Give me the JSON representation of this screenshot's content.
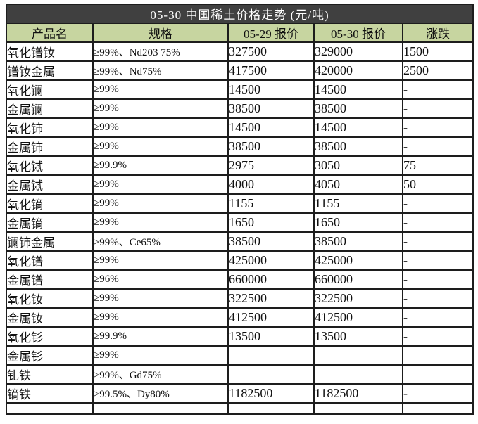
{
  "title": "05-30 中国稀土价格走势 (元/吨)",
  "columns": [
    "产品名",
    "规格",
    "05-29 报价",
    "05-30 报价",
    "涨跌"
  ],
  "rows": [
    {
      "product": "氧化镨钕",
      "spec": "≥99%、Nd203 75%",
      "price_0529": "327500",
      "price_0530": "329000",
      "change": "1500"
    },
    {
      "product": "镨钕金属",
      "spec": "≥99%、Nd75%",
      "price_0529": "417500",
      "price_0530": "420000",
      "change": "2500"
    },
    {
      "product": "氧化镧",
      "spec": "≥99%",
      "price_0529": "14500",
      "price_0530": "14500",
      "change": "-"
    },
    {
      "product": "金属镧",
      "spec": "≥99%",
      "price_0529": "38500",
      "price_0530": "38500",
      "change": "-"
    },
    {
      "product": "氧化铈",
      "spec": "≥99%",
      "price_0529": "14500",
      "price_0530": "14500",
      "change": "-"
    },
    {
      "product": "金属铈",
      "spec": "≥99%",
      "price_0529": "38500",
      "price_0530": "38500",
      "change": "-"
    },
    {
      "product": "氧化铽",
      "spec": "≥99.9%",
      "price_0529": "2975",
      "price_0530": "3050",
      "change": "75"
    },
    {
      "product": "金属铽",
      "spec": "≥99%",
      "price_0529": "4000",
      "price_0530": "4050",
      "change": "50"
    },
    {
      "product": "氧化镝",
      "spec": "≥99%",
      "price_0529": "1155",
      "price_0530": "1155",
      "change": "-"
    },
    {
      "product": "金属镝",
      "spec": "≥99%",
      "price_0529": "1650",
      "price_0530": "1650",
      "change": "-"
    },
    {
      "product": "镧铈金属",
      "spec": "≥99%、Ce65%",
      "price_0529": "38500",
      "price_0530": "38500",
      "change": "-"
    },
    {
      "product": "氧化镨",
      "spec": "≥99%",
      "price_0529": "425000",
      "price_0530": "425000",
      "change": "-"
    },
    {
      "product": "金属镨",
      "spec": "≥96%",
      "price_0529": "660000",
      "price_0530": "660000",
      "change": "-"
    },
    {
      "product": "氧化钕",
      "spec": "≥99%",
      "price_0529": "322500",
      "price_0530": "322500",
      "change": "-"
    },
    {
      "product": "金属钕",
      "spec": "≥99%",
      "price_0529": "412500",
      "price_0530": "412500",
      "change": "-"
    },
    {
      "product": "氧化钐",
      "spec": "≥99.9%",
      "price_0529": "13500",
      "price_0530": "13500",
      "change": "-"
    },
    {
      "product": "金属钐",
      "spec": "≥99%",
      "price_0529": "",
      "price_0530": "",
      "change": ""
    },
    {
      "product": "钆铁",
      "spec": "≥99%、Gd75%",
      "price_0529": "",
      "price_0530": "",
      "change": ""
    },
    {
      "product": "镝铁",
      "spec": "≥99.5%、Dy80%",
      "price_0529": "1182500",
      "price_0530": "1182500",
      "change": "-"
    }
  ],
  "colors": {
    "title_bg": "#404040",
    "title_text": "#ffffff",
    "header_bg": "#c7d5a0",
    "change_red": "#cb2026",
    "border": "#1d1d1d",
    "body_bg": "#ffffff"
  }
}
